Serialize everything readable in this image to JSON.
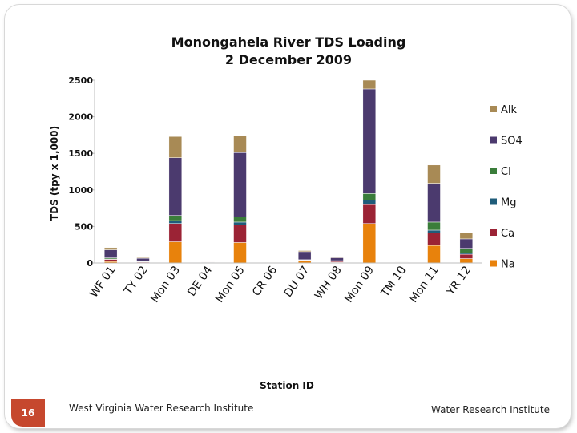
{
  "slide": {
    "page_number": "16",
    "footer_left": "West Virginia Water Research Institute",
    "footer_right": "Water Research Institute"
  },
  "chart_data": {
    "type": "bar",
    "stacked": true,
    "title": "Monongahela River TDS Loading",
    "subtitle": "2 December 2009",
    "xlabel": "Station ID",
    "ylabel": "TDS (tpy x 1,000)",
    "ylim": [
      0,
      2500
    ],
    "yticks": [
      0,
      500,
      1000,
      1500,
      2000,
      2500
    ],
    "grid": false,
    "legend_position": "right",
    "categories": [
      "WF 01",
      "TY 02",
      "Mon 03",
      "DE 04",
      "Mon 05",
      "CR 06",
      "DU 07",
      "WH 08",
      "Mon 09",
      "TM 10",
      "Mon 11",
      "YR 12"
    ],
    "series": [
      {
        "name": "Na",
        "color": "#e8820c",
        "values": [
          20,
          5,
          290,
          3,
          280,
          2,
          30,
          10,
          540,
          2,
          240,
          60
        ]
      },
      {
        "name": "Ca",
        "color": "#9b2335",
        "values": [
          30,
          10,
          250,
          4,
          240,
          2,
          10,
          15,
          260,
          3,
          170,
          60
        ]
      },
      {
        "name": "Mg",
        "color": "#1f5c7a",
        "values": [
          5,
          2,
          40,
          1,
          40,
          1,
          2,
          2,
          60,
          1,
          40,
          15
        ]
      },
      {
        "name": "Cl",
        "color": "#3a7d3a",
        "values": [
          15,
          3,
          70,
          2,
          70,
          1,
          3,
          5,
          90,
          1,
          110,
          65
        ]
      },
      {
        "name": "SO4",
        "color": "#4b3a6e",
        "values": [
          110,
          45,
          790,
          5,
          880,
          3,
          110,
          40,
          1430,
          3,
          530,
          130
        ]
      },
      {
        "name": "Alk",
        "color": "#a88a55",
        "values": [
          30,
          10,
          290,
          2,
          230,
          2,
          15,
          10,
          120,
          2,
          250,
          80
        ]
      }
    ]
  }
}
